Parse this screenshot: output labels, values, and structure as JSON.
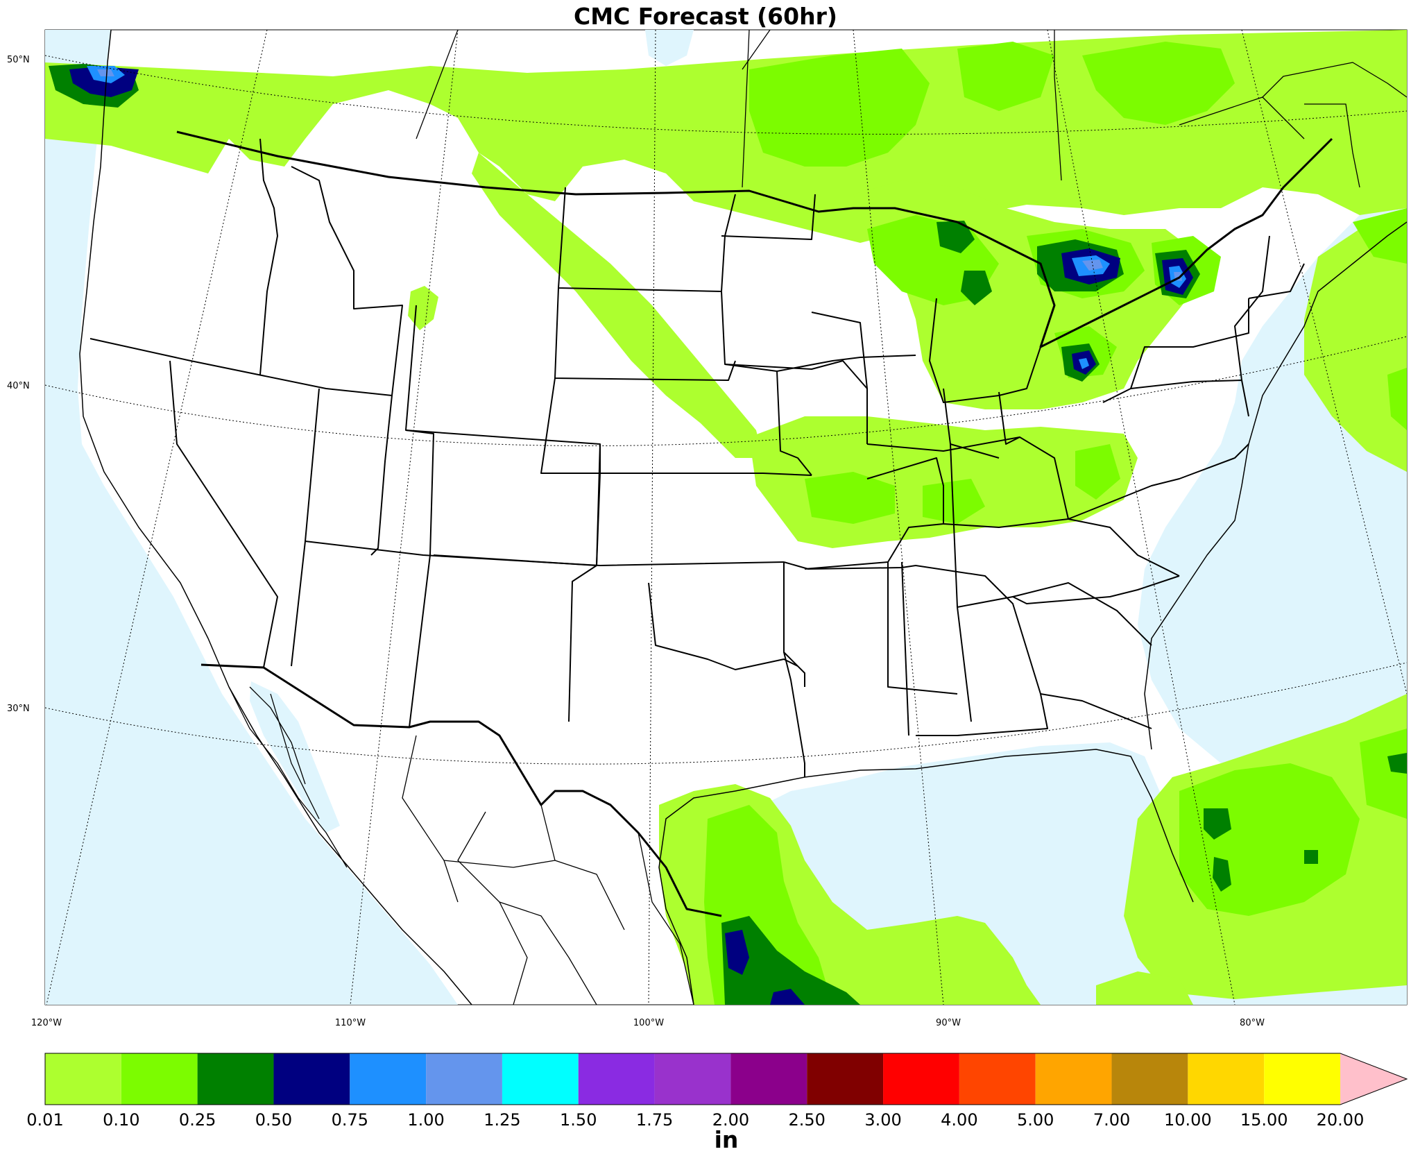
{
  "title": "CMC Forecast (60hr)",
  "units": "in",
  "latitude_labels": [
    "50°N",
    "40°N",
    "30°N"
  ],
  "longitude_labels": [
    "120°W",
    "110°W",
    "100°W",
    "90°W",
    "80°W"
  ],
  "colorbar": {
    "labels": [
      "0.01",
      "0.10",
      "0.25",
      "0.50",
      "0.75",
      "1.00",
      "1.25",
      "1.50",
      "1.75",
      "2.00",
      "2.50",
      "3.00",
      "4.00",
      "5.00",
      "7.00",
      "10.00",
      "15.00",
      "20.00"
    ],
    "colors": [
      "#adff2f",
      "#7cfc00",
      "#008000",
      "#000080",
      "#1e90ff",
      "#6495ed",
      "#00ffff",
      "#8a2be2",
      "#9932cc",
      "#8b008b",
      "#800000",
      "#ff0000",
      "#ff4500",
      "#ffa500",
      "#b8860b",
      "#ffd700",
      "#ffff00"
    ],
    "extend_color": "#ffc0cb"
  },
  "colors": {
    "ocean": "#dff5fd",
    "land": "#ffffff",
    "border": "#000000"
  }
}
